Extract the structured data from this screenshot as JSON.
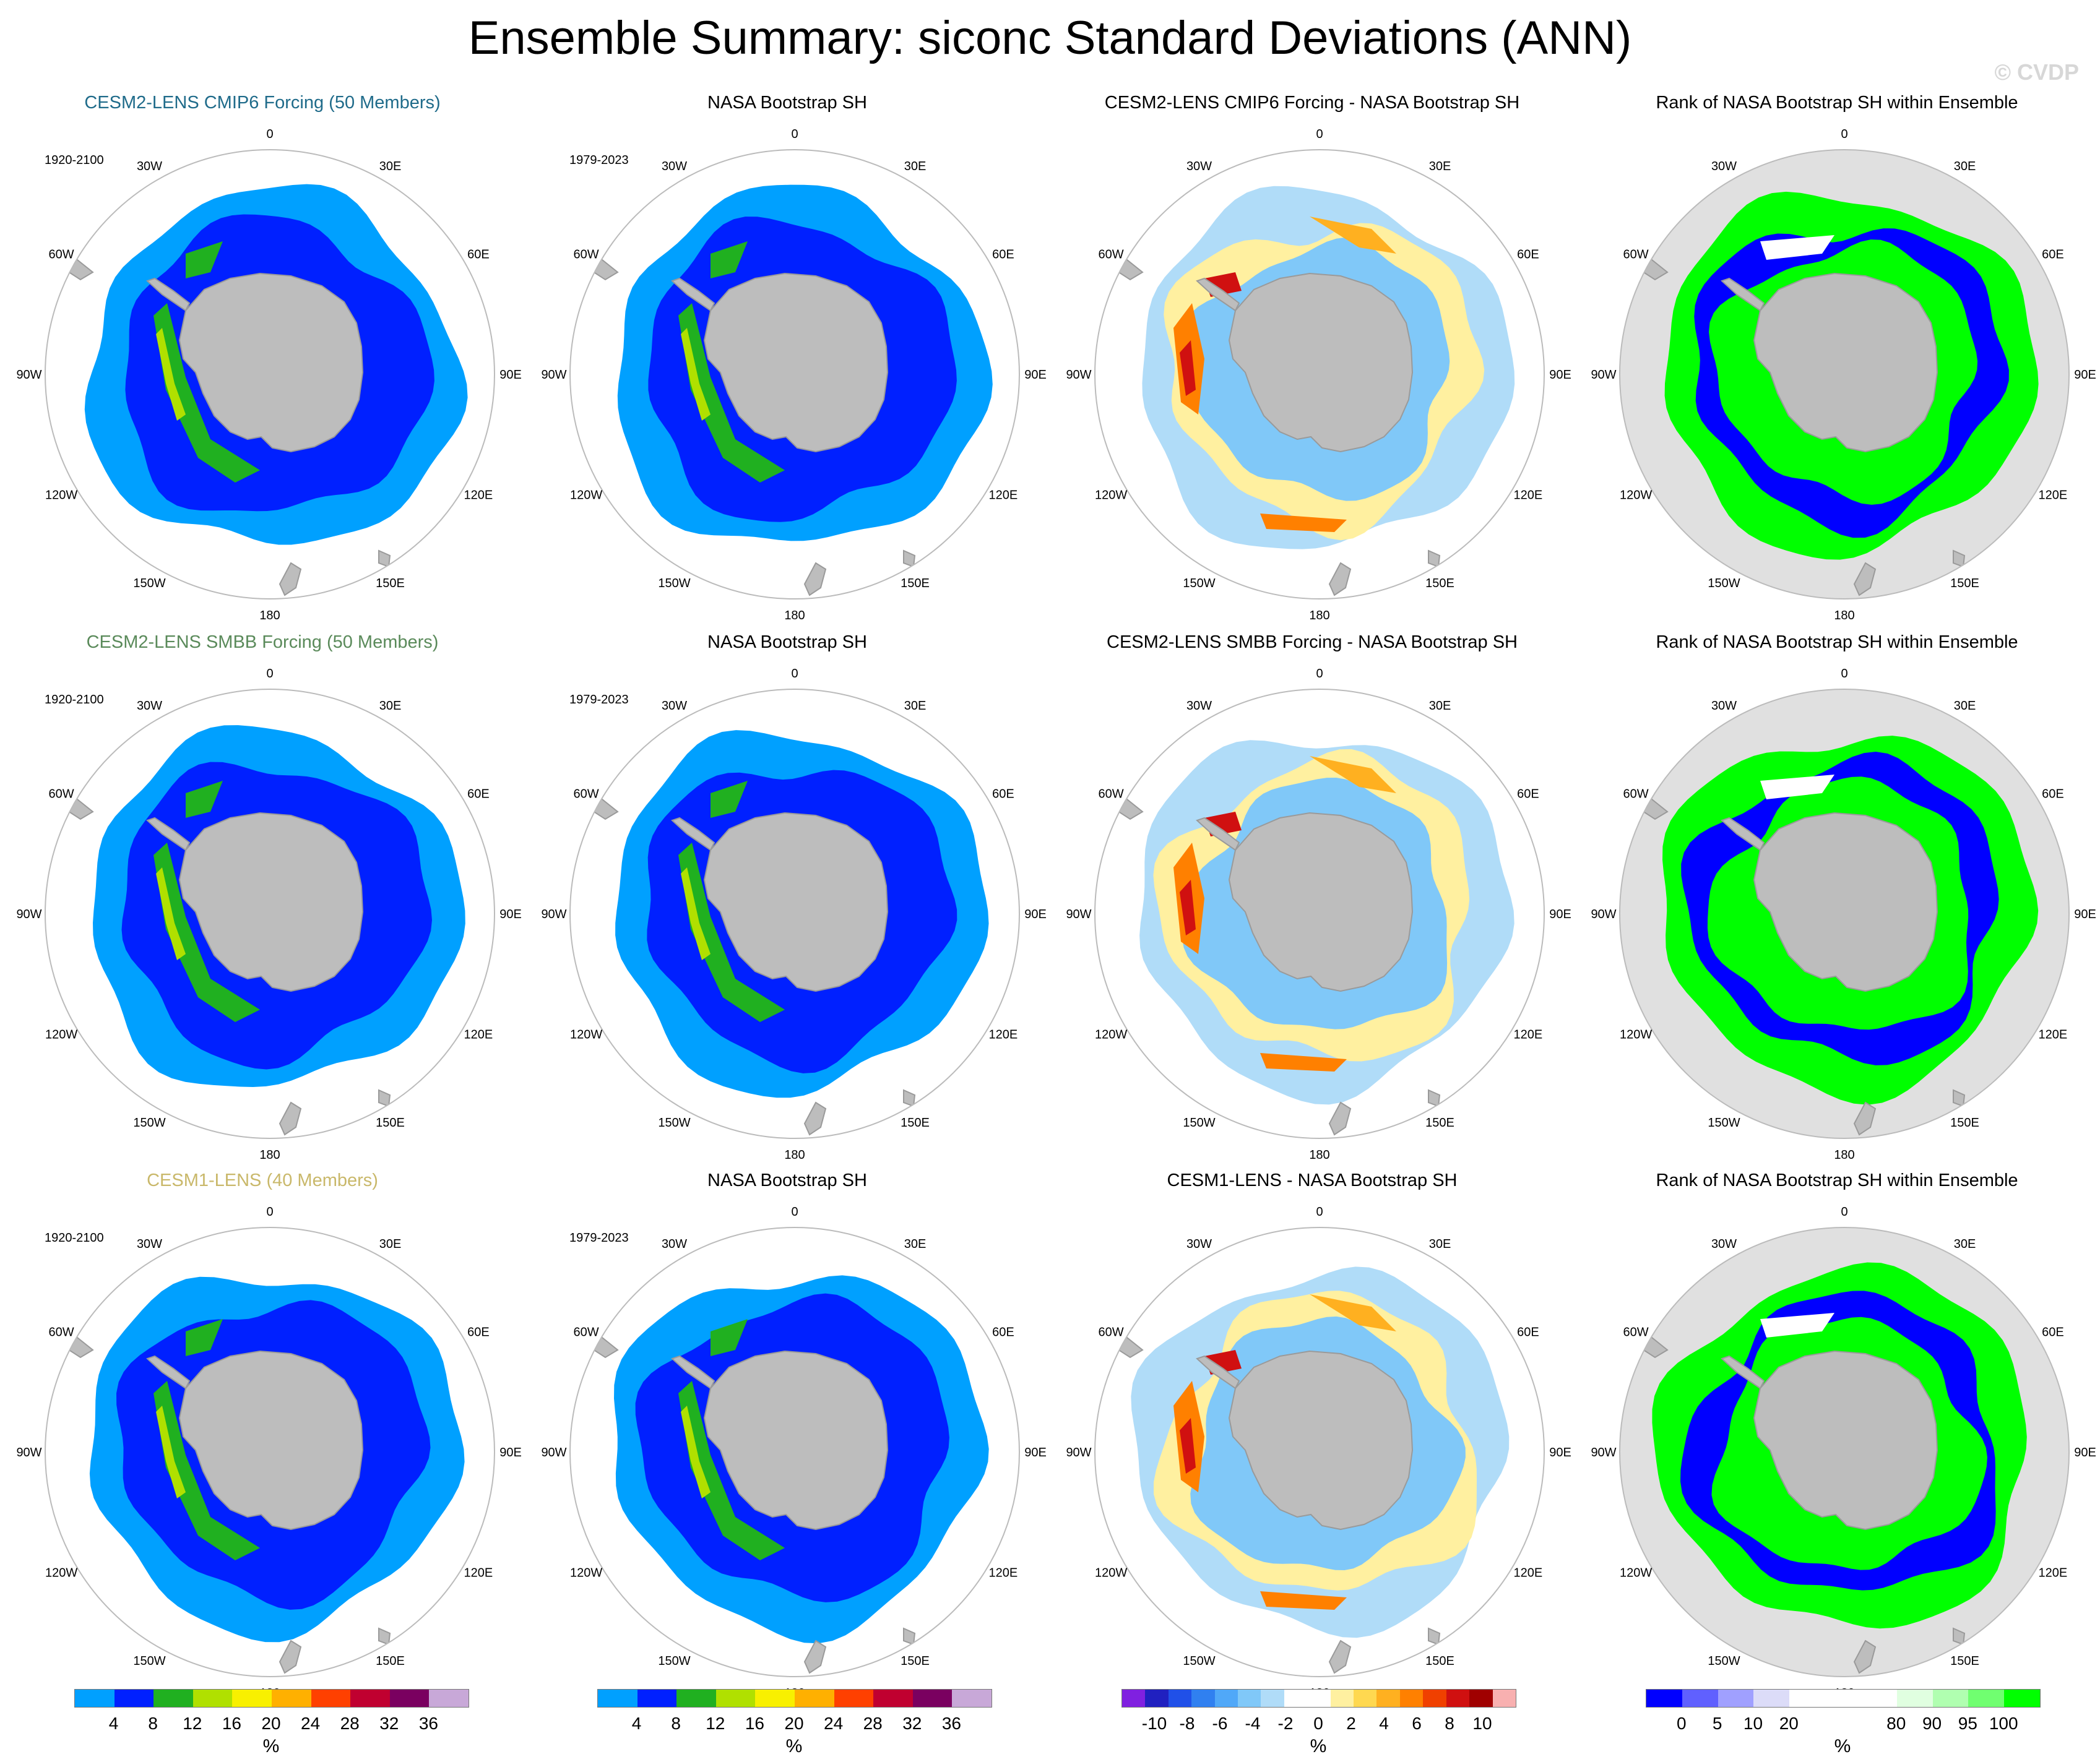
{
  "title": "Ensemble Summary: siconc Standard Deviations (ANN)",
  "credit": "© CVDP",
  "lon_labels": [
    "0",
    "30E",
    "60E",
    "90E",
    "120E",
    "150E",
    "180",
    "150W",
    "120W",
    "90W",
    "60W",
    "30W"
  ],
  "rows": [
    {
      "panels": [
        {
          "title": "CESM2-LENS CMIP6 Forcing (50 Members)",
          "title_color": "#1f6b8a",
          "period": "1920-2100",
          "kind": "std"
        },
        {
          "title": "NASA Bootstrap SH",
          "title_color": "#000000",
          "period": "1979-2023",
          "kind": "std"
        },
        {
          "title": "CESM2-LENS CMIP6 Forcing - NASA Bootstrap SH",
          "title_color": "#000000",
          "period": "",
          "kind": "diff"
        },
        {
          "title": "Rank of NASA Bootstrap SH within Ensemble",
          "title_color": "#000000",
          "period": "",
          "kind": "rank"
        }
      ]
    },
    {
      "panels": [
        {
          "title": "CESM2-LENS SMBB Forcing (50 Members)",
          "title_color": "#5a8a5a",
          "period": "1920-2100",
          "kind": "std"
        },
        {
          "title": "NASA Bootstrap SH",
          "title_color": "#000000",
          "period": "1979-2023",
          "kind": "std"
        },
        {
          "title": "CESM2-LENS SMBB Forcing - NASA Bootstrap SH",
          "title_color": "#000000",
          "period": "",
          "kind": "diff"
        },
        {
          "title": "Rank of NASA Bootstrap SH within Ensemble",
          "title_color": "#000000",
          "period": "",
          "kind": "rank"
        }
      ]
    },
    {
      "panels": [
        {
          "title": "CESM1-LENS (40 Members)",
          "title_color": "#c9b86a",
          "period": "1920-2100",
          "kind": "std"
        },
        {
          "title": "NASA Bootstrap SH",
          "title_color": "#000000",
          "period": "1979-2023",
          "kind": "std"
        },
        {
          "title": "CESM1-LENS - NASA Bootstrap SH",
          "title_color": "#000000",
          "period": "",
          "kind": "diff"
        },
        {
          "title": "Rank of NASA Bootstrap SH within Ensemble",
          "title_color": "#000000",
          "period": "",
          "kind": "rank"
        }
      ]
    }
  ],
  "colorbars": [
    {
      "name": "std",
      "colors": [
        "#00a0ff",
        "#0020ff",
        "#20b020",
        "#b0e000",
        "#f8f000",
        "#ffb000",
        "#ff4000",
        "#c00030",
        "#7a0060",
        "#c8a8d8"
      ],
      "labels": [
        "4",
        "8",
        "12",
        "16",
        "20",
        "24",
        "28",
        "32",
        "36"
      ],
      "unit": "%"
    },
    {
      "name": "diff",
      "colors": [
        "#8020e0",
        "#2020c0",
        "#2050e8",
        "#3080f0",
        "#50a8f8",
        "#80c8f8",
        "#b0dcf8",
        "#ffffff",
        "#ffffff",
        "#fff0a0",
        "#ffd850",
        "#ffb020",
        "#ff8000",
        "#f04000",
        "#d01010",
        "#a00000",
        "#f8b0b0"
      ],
      "labels": [
        "-10",
        "-8",
        "-6",
        "-4",
        "-2",
        "0",
        "2",
        "4",
        "6",
        "8",
        "10"
      ],
      "unit": "%"
    },
    {
      "name": "rank",
      "colors": [
        "#0000ff",
        "#6060ff",
        "#a0a0ff",
        "#dcdcf8",
        "#ffffff",
        "#ffffff",
        "#ffffff",
        "#e0ffe0",
        "#b0ffb0",
        "#70ff70",
        "#00ff00"
      ],
      "labels": [
        "0",
        "5",
        "10",
        "20",
        "80",
        "90",
        "95",
        "100"
      ],
      "unit": "%"
    }
  ]
}
